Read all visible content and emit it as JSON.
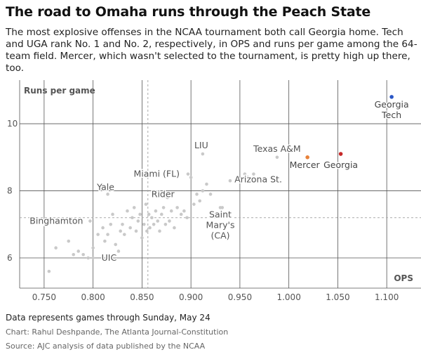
{
  "title": "The road to Omaha runs through the Peach State",
  "subtitle": "The most explosive offenses in the NCAA tournament both call Georgia home. Tech and UGA rank No. 1 and No. 2, respectively, in OPS and runs per game among the 64-team field. Mercer, which wasn't selected to the tournament, is pretty high up there, too.",
  "note": "Data represents games through Sunday, May 24",
  "credit": "Chart: Rahul Deshpande, The Atlanta Journal-Constitution",
  "source": "Source: AJC analysis of data published by the NCAA",
  "colors": {
    "highlight_blue": "#2a56c6",
    "highlight_orange": "#e8823a",
    "highlight_red": "#c62828",
    "point": "#c9c9c9",
    "grid": "#555555",
    "median": "#aaaaaa"
  },
  "chart_data": {
    "type": "scatter",
    "xlabel": "OPS",
    "ylabel": "Runs per game",
    "xlim": [
      0.725,
      1.135
    ],
    "ylim": [
      5.1,
      11.3
    ],
    "xticks": [
      0.75,
      0.8,
      0.85,
      0.9,
      0.95,
      1.0,
      1.05,
      1.1
    ],
    "xtick_labels": [
      "0.750",
      "0.800",
      "0.850",
      "0.900",
      "0.950",
      "1.000",
      "1.050",
      "1.100"
    ],
    "yticks": [
      6,
      8,
      10
    ],
    "ytick_labels": [
      "6",
      "8",
      "10"
    ],
    "median_x": 0.856,
    "median_y": 7.2,
    "grid": true,
    "highlighted": [
      {
        "x": 1.105,
        "y": 10.8,
        "label": "Georgia\nTech",
        "color": "#2a56c6"
      },
      {
        "x": 1.053,
        "y": 9.1,
        "label": "Georgia",
        "color": "#c62828"
      },
      {
        "x": 1.019,
        "y": 9.0,
        "label": "Mercer",
        "color": "#e8823a"
      }
    ],
    "labeled": [
      {
        "x": 0.912,
        "y": 9.1,
        "label": "LIU"
      },
      {
        "x": 0.988,
        "y": 9.0,
        "label": "Texas A&M"
      },
      {
        "x": 0.897,
        "y": 8.5,
        "label": "Miami (FL)"
      },
      {
        "x": 0.815,
        "y": 7.9,
        "label": "Yale"
      },
      {
        "x": 0.88,
        "y": 7.9,
        "label": "Rider"
      },
      {
        "x": 0.958,
        "y": 8.4,
        "label": "Arizona St."
      },
      {
        "x": 0.797,
        "y": 7.1,
        "label": "Binghamton"
      },
      {
        "x": 0.93,
        "y": 7.5,
        "label": "Saint\nMary's\n(CA)"
      },
      {
        "x": 0.8,
        "y": 6.0,
        "label": "UIC"
      }
    ],
    "points": [
      [
        0.755,
        5.6
      ],
      [
        0.762,
        6.3
      ],
      [
        0.775,
        6.5
      ],
      [
        0.78,
        6.1
      ],
      [
        0.785,
        6.2
      ],
      [
        0.79,
        6.1
      ],
      [
        0.795,
        6.0
      ],
      [
        0.8,
        6.3
      ],
      [
        0.805,
        6.7
      ],
      [
        0.81,
        6.9
      ],
      [
        0.812,
        6.5
      ],
      [
        0.815,
        6.7
      ],
      [
        0.818,
        7.0
      ],
      [
        0.82,
        7.3
      ],
      [
        0.823,
        6.4
      ],
      [
        0.826,
        6.2
      ],
      [
        0.828,
        6.8
      ],
      [
        0.83,
        7.0
      ],
      [
        0.832,
        6.7
      ],
      [
        0.835,
        7.4
      ],
      [
        0.838,
        6.9
      ],
      [
        0.84,
        7.2
      ],
      [
        0.842,
        7.5
      ],
      [
        0.844,
        6.8
      ],
      [
        0.846,
        7.1
      ],
      [
        0.848,
        7.3
      ],
      [
        0.85,
        6.6
      ],
      [
        0.852,
        7.0
      ],
      [
        0.854,
        7.6
      ],
      [
        0.855,
        6.8
      ],
      [
        0.857,
        7.3
      ],
      [
        0.858,
        6.9
      ],
      [
        0.86,
        7.2
      ],
      [
        0.862,
        7.0
      ],
      [
        0.864,
        7.4
      ],
      [
        0.866,
        7.1
      ],
      [
        0.868,
        6.8
      ],
      [
        0.87,
        7.3
      ],
      [
        0.872,
        7.5
      ],
      [
        0.874,
        7.0
      ],
      [
        0.876,
        7.8
      ],
      [
        0.878,
        7.1
      ],
      [
        0.88,
        7.4
      ],
      [
        0.883,
        6.9
      ],
      [
        0.886,
        7.5
      ],
      [
        0.89,
        7.3
      ],
      [
        0.893,
        7.4
      ],
      [
        0.896,
        7.2
      ],
      [
        0.9,
        8.4
      ],
      [
        0.903,
        7.6
      ],
      [
        0.906,
        7.9
      ],
      [
        0.909,
        7.7
      ],
      [
        0.912,
        8.0
      ],
      [
        0.916,
        8.2
      ],
      [
        0.92,
        7.9
      ],
      [
        0.925,
        7.3
      ],
      [
        0.932,
        7.5
      ],
      [
        0.94,
        8.3
      ],
      [
        0.955,
        8.5
      ],
      [
        0.964,
        8.5
      ],
      [
        0.972,
        8.3
      ]
    ]
  }
}
